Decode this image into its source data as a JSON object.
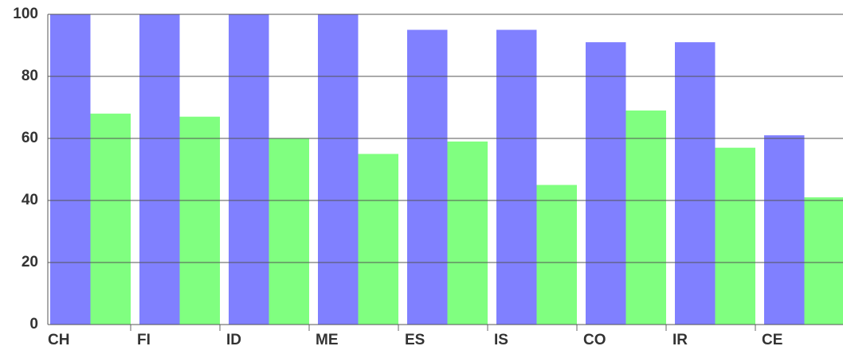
{
  "chart_data": {
    "type": "bar",
    "categories": [
      "CH",
      "FI",
      "ID",
      "ME",
      "ES",
      "IS",
      "CO",
      "IR",
      "CE"
    ],
    "series": [
      {
        "color": "#8080ff",
        "values": [
          100,
          100,
          100,
          100,
          95,
          95,
          91,
          91,
          61
        ]
      },
      {
        "color": "#80ff80",
        "values": [
          68,
          67,
          60,
          55,
          59,
          45,
          69,
          57,
          41
        ]
      }
    ],
    "ylim": [
      0,
      100
    ],
    "yticks": [
      0,
      20,
      40,
      60,
      80,
      100
    ],
    "grid": true
  }
}
